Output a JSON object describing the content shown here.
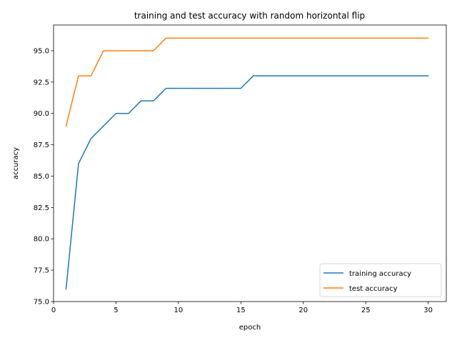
{
  "chart_data": {
    "type": "line",
    "title": "training and test accuracy with random horizontal flip",
    "xlabel": "epoch",
    "ylabel": "accuracy",
    "xlim": [
      0,
      31.45
    ],
    "ylim": [
      75.0,
      97.05
    ],
    "xticks": [
      0,
      5,
      10,
      15,
      20,
      25,
      30
    ],
    "xtick_labels": [
      "0",
      "5",
      "10",
      "15",
      "20",
      "25",
      "30"
    ],
    "yticks": [
      75.0,
      77.5,
      80.0,
      82.5,
      85.0,
      87.5,
      90.0,
      92.5,
      95.0
    ],
    "ytick_labels": [
      "75.0",
      "77.5",
      "80.0",
      "82.5",
      "85.0",
      "87.5",
      "90.0",
      "92.5",
      "95.0"
    ],
    "grid": false,
    "legend_position": "bottom-right",
    "x": [
      1,
      2,
      3,
      4,
      5,
      6,
      7,
      8,
      9,
      10,
      11,
      12,
      13,
      14,
      15,
      16,
      17,
      18,
      19,
      20,
      21,
      22,
      23,
      24,
      25,
      26,
      27,
      28,
      29,
      30
    ],
    "series": [
      {
        "name": "training accuracy",
        "color": "#1f77b4",
        "values": [
          76,
          86,
          88,
          89,
          90,
          90,
          91,
          91,
          92,
          92,
          92,
          92,
          92,
          92,
          92,
          93,
          93,
          93,
          93,
          93,
          93,
          93,
          93,
          93,
          93,
          93,
          93,
          93,
          93,
          93
        ]
      },
      {
        "name": "test accuracy",
        "color": "#ff7f0e",
        "values": [
          89,
          93,
          93,
          95,
          95,
          95,
          95,
          95,
          96,
          96,
          96,
          96,
          96,
          96,
          96,
          96,
          96,
          96,
          96,
          96,
          96,
          96,
          96,
          96,
          96,
          96,
          96,
          96,
          96,
          96
        ]
      }
    ]
  }
}
